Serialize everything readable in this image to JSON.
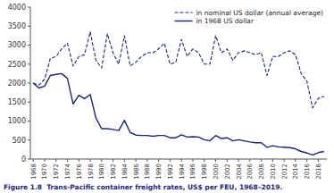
{
  "chart_data": {
    "type": "line",
    "title": "Figure 1.8  Trans-Pacific container freight rates, US$ per FEU, 1968–2019.",
    "x": [
      1968,
      1969,
      1970,
      1971,
      1972,
      1973,
      1974,
      1975,
      1976,
      1977,
      1978,
      1979,
      1980,
      1981,
      1982,
      1983,
      1984,
      1985,
      1986,
      1987,
      1988,
      1989,
      1990,
      1991,
      1992,
      1993,
      1994,
      1995,
      1996,
      1997,
      1998,
      1999,
      2000,
      2001,
      2002,
      2003,
      2004,
      2005,
      2006,
      2007,
      2008,
      2009,
      2010,
      2011,
      2012,
      2013,
      2014,
      2015,
      2016,
      2017,
      2018,
      2019
    ],
    "series": [
      {
        "name": "in nominal US dollar (annual average)",
        "color": "#1a237e",
        "line_style": "dashed",
        "values": [
          2000,
          1950,
          2100,
          2650,
          2700,
          2900,
          3050,
          2450,
          2700,
          2750,
          3350,
          2600,
          2400,
          3300,
          2800,
          2500,
          3250,
          2450,
          2550,
          2700,
          2800,
          2800,
          2900,
          3050,
          2500,
          2550,
          3150,
          2700,
          2900,
          2800,
          2500,
          2500,
          3250,
          2800,
          2900,
          2600,
          2800,
          2850,
          2800,
          2750,
          2800,
          2200,
          2700,
          2700,
          2800,
          2850,
          2750,
          2250,
          2050,
          1350,
          1600,
          1650
        ]
      },
      {
        "name": "in 1968 US dollar",
        "color": "#1a237e",
        "line_style": "solid",
        "values": [
          2000,
          1870,
          1920,
          2200,
          2230,
          2250,
          2120,
          1450,
          1680,
          1590,
          1700,
          1080,
          800,
          800,
          780,
          750,
          1020,
          700,
          630,
          620,
          620,
          600,
          620,
          620,
          560,
          560,
          640,
          580,
          590,
          580,
          510,
          480,
          620,
          540,
          560,
          480,
          510,
          480,
          450,
          430,
          430,
          310,
          350,
          320,
          310,
          300,
          270,
          200,
          160,
          110,
          170,
          200
        ]
      }
    ],
    "xlim": [
      1967.5,
      2019.5
    ],
    "xticks": [
      1968,
      1970,
      1972,
      1974,
      1976,
      1978,
      1980,
      1982,
      1984,
      1986,
      1988,
      1990,
      1992,
      1994,
      1996,
      1998,
      2000,
      2002,
      2004,
      2006,
      2008,
      2010,
      2012,
      2014,
      2016,
      2018
    ],
    "ylim": [
      0,
      4000
    ],
    "yticks": [
      0,
      500,
      1000,
      1500,
      2000,
      2500,
      3000,
      3500,
      4000
    ],
    "legend": "upper right"
  }
}
